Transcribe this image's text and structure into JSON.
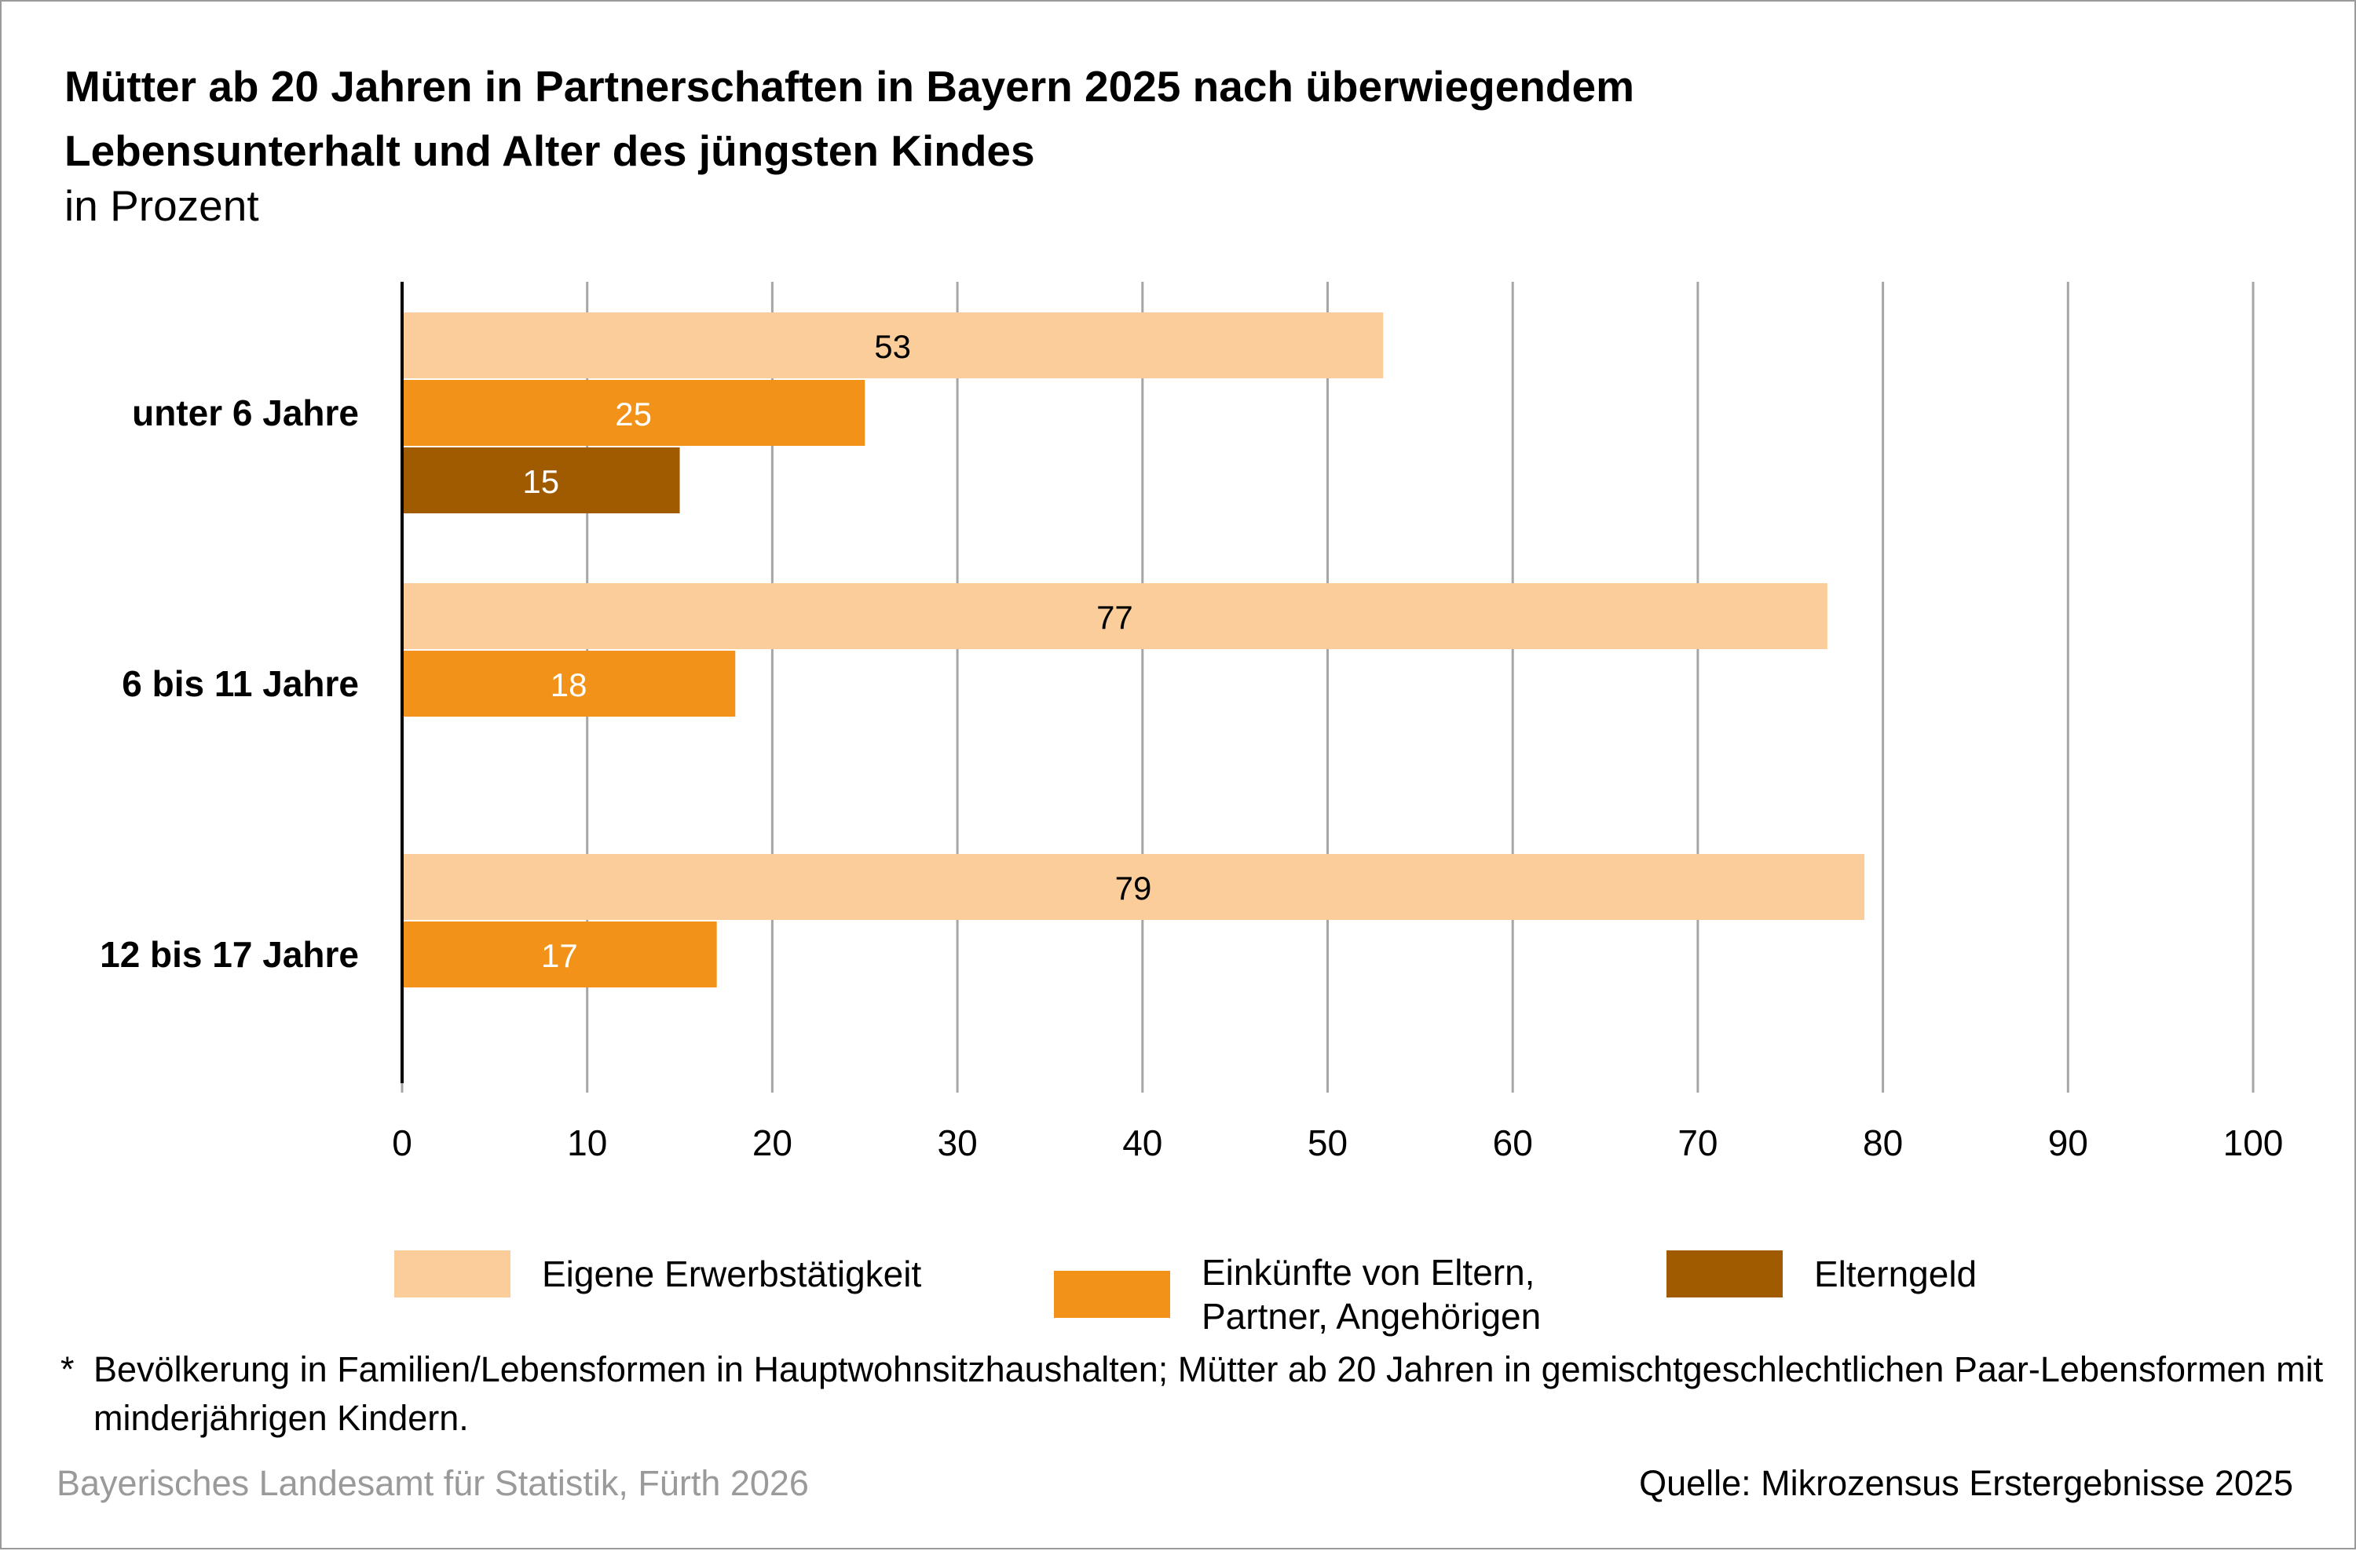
{
  "header": {
    "title_line1": "Mütter ab 20 Jahren in Partnerschaften in Bayern 2025 nach überwiegendem",
    "title_line2": "Lebensunterhalt und Alter des jüngsten Kindes",
    "subtitle": "in Prozent"
  },
  "chart_data": {
    "type": "bar",
    "orientation": "horizontal",
    "title": "Mütter ab 20 Jahren in Partnerschaften in Bayern 2025 nach überwiegendem Lebensunterhalt und Alter des jüngsten Kindes",
    "subtitle": "in Prozent",
    "categories": [
      "unter 6 Jahre",
      "6 bis 11 Jahre",
      "12 bis 17 Jahre"
    ],
    "series": [
      {
        "name": "Eigene Erwerbstätigkeit",
        "color": "#fbcd9b",
        "label_color": "#000000",
        "values": [
          53,
          77,
          79
        ]
      },
      {
        "name": "Einkünfte von Eltern,\nPartner, Angehörigen",
        "color": "#f29219",
        "label_color": "#ffffff",
        "values": [
          25,
          18,
          17
        ]
      },
      {
        "name": "Elterngeld",
        "color": "#a05a00",
        "label_color": "#ffffff",
        "values": [
          15,
          null,
          null
        ]
      }
    ],
    "xlim": [
      0,
      100
    ],
    "xticks": [
      0,
      10,
      20,
      30,
      40,
      50,
      60,
      70,
      80,
      90,
      100
    ],
    "grid": true,
    "legend_position": "bottom"
  },
  "footnote": {
    "marker": "*",
    "text": "Bevölkerung in Familien/Lebensformen in Hauptwohnsitzhaushalten; Mütter ab 20 Jahren in gemischtgeschlechtlichen Paar-Lebensformen mit minderjährigen Kindern."
  },
  "footer": {
    "publisher": "Bayerisches Landesamt für Statistik, Fürth 2026",
    "source": "Quelle: Mikrozensus Erstergebnisse 2025"
  }
}
